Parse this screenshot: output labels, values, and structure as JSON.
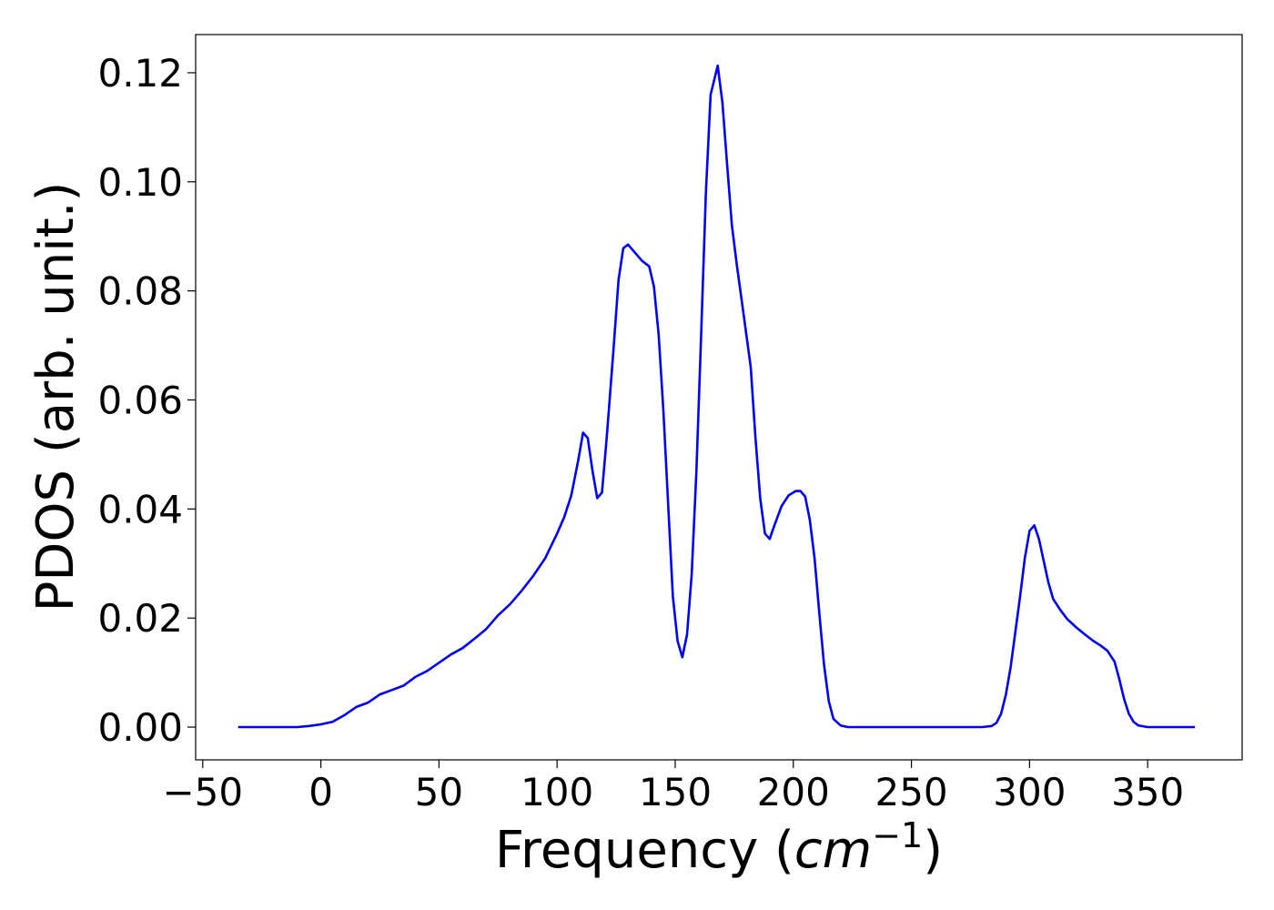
{
  "chart_data": {
    "type": "line",
    "title": "",
    "xlabel": "Frequency (",
    "xlabel_math": "cm",
    "xlabel_sup": "−1",
    "xlabel_end": ")",
    "ylabel": "PDOS (arb. unit.)",
    "xlim": [
      -53,
      390
    ],
    "ylim": [
      -0.006,
      0.127
    ],
    "xticks": [
      -50,
      0,
      50,
      100,
      150,
      200,
      250,
      300,
      350
    ],
    "xtick_labels": [
      "−50",
      "0",
      "50",
      "100",
      "150",
      "200",
      "250",
      "300",
      "350"
    ],
    "yticks": [
      0.0,
      0.02,
      0.04,
      0.06,
      0.08,
      0.1,
      0.12
    ],
    "ytick_labels": [
      "0.00",
      "0.02",
      "0.04",
      "0.06",
      "0.08",
      "0.10",
      "0.12"
    ],
    "grid": false,
    "legend": "none",
    "line_color": "#0000ff",
    "series": [
      {
        "x": [
          -35,
          -10,
          -5,
          0,
          5,
          10,
          15,
          20,
          25,
          30,
          35,
          40,
          45,
          50,
          55,
          60,
          65,
          70,
          75,
          80,
          85,
          90,
          95,
          100,
          103,
          106,
          109,
          111,
          113,
          115,
          117,
          119,
          121,
          124,
          126,
          128,
          130,
          133,
          136,
          139,
          141,
          143,
          145,
          147,
          149,
          151,
          153,
          155,
          157,
          159,
          161,
          163,
          165,
          168,
          170,
          172,
          174,
          176,
          179,
          182,
          184,
          186,
          188,
          190,
          192,
          195,
          198,
          201,
          203,
          205,
          207,
          209,
          211,
          213,
          215,
          217,
          220,
          223,
          226,
          230,
          240,
          250,
          260,
          270,
          280,
          284,
          286,
          288,
          290,
          292,
          294,
          296,
          298,
          300,
          302,
          304,
          306,
          308,
          310,
          313,
          316,
          320,
          324,
          327,
          330,
          333,
          336,
          338,
          340,
          342,
          344,
          346,
          350,
          360,
          370
        ],
        "y": [
          0.0,
          0.0,
          0.0002,
          0.0005,
          0.001,
          0.0022,
          0.0037,
          0.0045,
          0.006,
          0.0068,
          0.0076,
          0.0092,
          0.0103,
          0.0118,
          0.0133,
          0.0145,
          0.0162,
          0.018,
          0.0205,
          0.0225,
          0.025,
          0.0278,
          0.031,
          0.0355,
          0.0385,
          0.0425,
          0.049,
          0.054,
          0.053,
          0.047,
          0.042,
          0.043,
          0.053,
          0.07,
          0.082,
          0.0878,
          0.0885,
          0.087,
          0.0855,
          0.0845,
          0.0808,
          0.072,
          0.058,
          0.041,
          0.024,
          0.0158,
          0.0128,
          0.017,
          0.028,
          0.047,
          0.072,
          0.098,
          0.116,
          0.1213,
          0.1145,
          0.103,
          0.092,
          0.085,
          0.0755,
          0.066,
          0.053,
          0.042,
          0.0355,
          0.0345,
          0.037,
          0.0405,
          0.0425,
          0.0433,
          0.0433,
          0.0423,
          0.038,
          0.031,
          0.021,
          0.0115,
          0.0048,
          0.0015,
          0.0003,
          0.0,
          0.0,
          0.0,
          0.0,
          0.0,
          0.0,
          0.0,
          0.0,
          0.0002,
          0.0008,
          0.0025,
          0.006,
          0.011,
          0.0175,
          0.024,
          0.031,
          0.036,
          0.037,
          0.0345,
          0.0305,
          0.0265,
          0.0235,
          0.0215,
          0.0198,
          0.0182,
          0.0168,
          0.0158,
          0.015,
          0.014,
          0.012,
          0.0088,
          0.0052,
          0.0025,
          0.001,
          0.0003,
          0.0,
          0.0,
          0.0
        ]
      }
    ]
  }
}
